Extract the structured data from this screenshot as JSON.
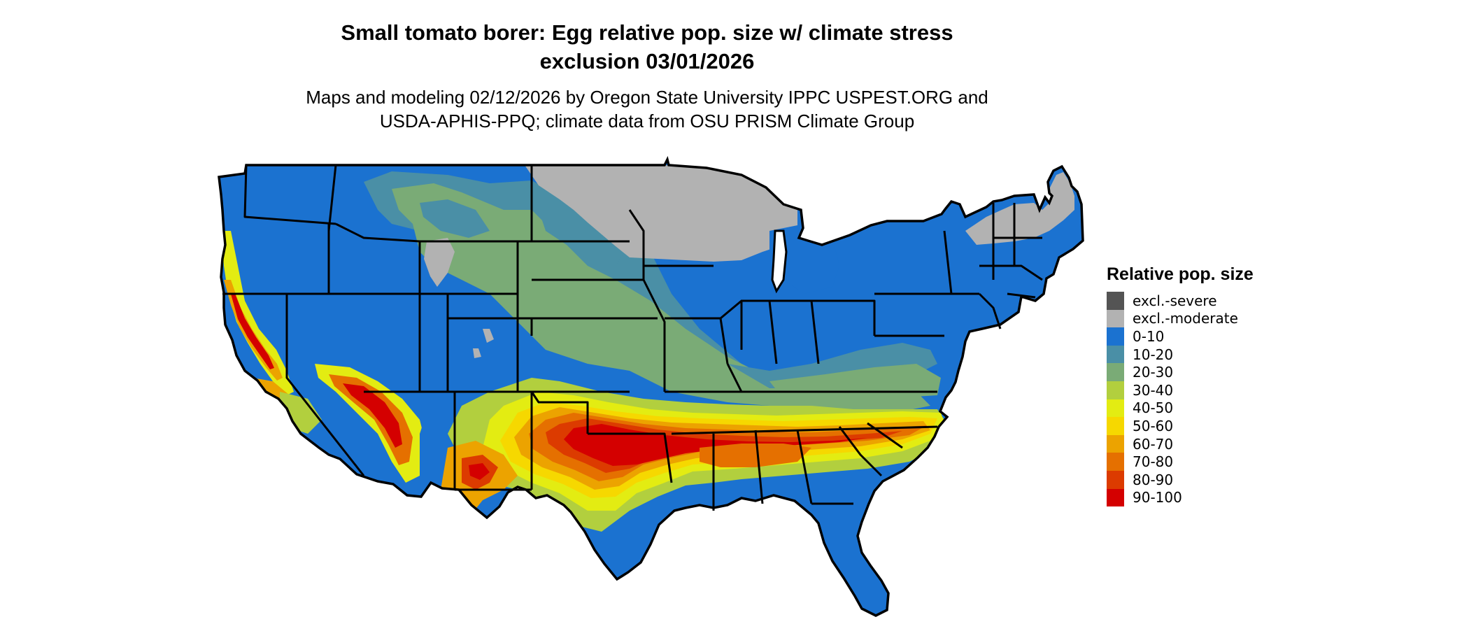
{
  "title": {
    "line1": "Small tomato borer: Egg relative pop. size w/ climate stress",
    "line2": "exclusion 03/01/2026"
  },
  "subtitle": {
    "line1": "Maps and modeling 02/12/2026 by Oregon State University IPPC USPEST.ORG and",
    "line2": "USDA-APHIS-PPQ; climate data from OSU PRISM Climate Group"
  },
  "legend": {
    "title": "Relative pop. size",
    "items": [
      {
        "label": "excl.-severe",
        "color": "#545454"
      },
      {
        "label": "excl.-moderate",
        "color": "#b2b2b2"
      },
      {
        "label": "0-10",
        "color": "#1b72d0"
      },
      {
        "label": "10-20",
        "color": "#4a8fa6"
      },
      {
        "label": "20-30",
        "color": "#7aab76"
      },
      {
        "label": "30-40",
        "color": "#b2cf3e"
      },
      {
        "label": "40-50",
        "color": "#e3ec12"
      },
      {
        "label": "50-60",
        "color": "#f6d800"
      },
      {
        "label": "60-70",
        "color": "#eca300"
      },
      {
        "label": "70-80",
        "color": "#e57000"
      },
      {
        "label": "80-90",
        "color": "#dc3b00"
      },
      {
        "label": "90-100",
        "color": "#d40000"
      }
    ]
  }
}
